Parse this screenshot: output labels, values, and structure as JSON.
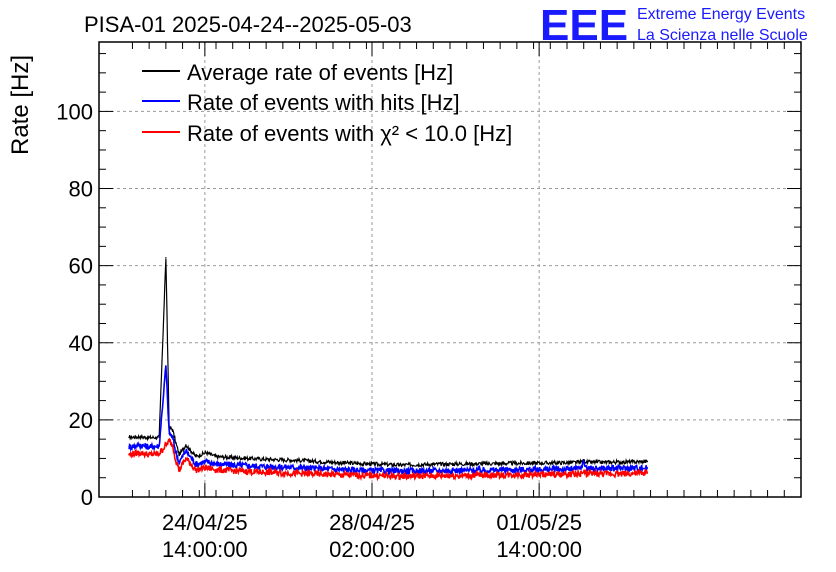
{
  "chart_data": {
    "type": "line",
    "title": "PISA-01 2025-04-24--2025-05-03",
    "ylabel": "Rate [Hz]",
    "xlabel": "",
    "ylim": [
      0,
      118
    ],
    "xlim_days": [
      0,
      10.5
    ],
    "y_ticks": [
      0,
      20,
      40,
      60,
      80,
      100
    ],
    "y_tick_labels": [
      "0",
      "20",
      "40",
      "60",
      "80",
      "100"
    ],
    "x_ticks_days": [
      1.58333,
      4.08333,
      6.58333
    ],
    "x_tick_labels": [
      {
        "date": "24/04/25",
        "time": "14:00:00"
      },
      {
        "date": "28/04/25",
        "time": "02:00:00"
      },
      {
        "date": "01/05/25",
        "time": "14:00:00"
      }
    ],
    "grid": true,
    "legend_position": "top-left",
    "logo": {
      "mark": "EEE",
      "line1": "Extreme Energy Events",
      "line2": "La Scienza nelle Scuole",
      "color": "#1a1aff"
    },
    "series": [
      {
        "name": "Average rate of events [Hz]",
        "color": "#000000",
        "x": [
          0.45,
          0.6,
          0.75,
          0.9,
          1.0,
          1.05,
          1.1,
          1.15,
          1.2,
          1.3,
          1.45,
          1.6,
          1.75,
          2.0,
          2.5,
          3.0,
          3.5,
          4.0,
          4.5,
          5.0,
          5.5,
          6.0,
          6.5,
          7.0,
          7.2,
          7.25,
          7.3,
          7.5,
          8.0,
          8.2
        ],
        "values": [
          15.5,
          15.6,
          15.4,
          15.5,
          62.0,
          18.0,
          17.5,
          14.0,
          11.0,
          13.5,
          10.5,
          11.5,
          10.5,
          10.2,
          9.8,
          9.5,
          9.0,
          8.6,
          8.3,
          8.5,
          8.6,
          8.7,
          8.8,
          8.9,
          9.0,
          9.5,
          9.0,
          9.0,
          9.1,
          9.2
        ],
        "marks": [
          0.5,
          2.0,
          4.0,
          6.0,
          8.0
        ]
      },
      {
        "name": "Rate of events with hits [Hz]",
        "color": "#0000ff",
        "x": [
          0.45,
          0.6,
          0.75,
          0.9,
          1.0,
          1.05,
          1.1,
          1.15,
          1.2,
          1.3,
          1.45,
          1.6,
          1.75,
          2.0,
          2.5,
          3.0,
          3.5,
          4.0,
          4.5,
          5.0,
          5.5,
          6.0,
          6.5,
          7.0,
          7.2,
          7.25,
          7.3,
          7.5,
          8.0,
          8.2
        ],
        "values": [
          13.0,
          13.5,
          13.0,
          13.2,
          34.0,
          16.5,
          15.5,
          11.5,
          9.0,
          12.0,
          8.5,
          9.2,
          8.6,
          8.3,
          7.9,
          7.6,
          7.2,
          6.9,
          6.7,
          6.8,
          6.9,
          7.0,
          7.1,
          7.2,
          7.4,
          9.0,
          7.4,
          7.4,
          7.5,
          7.6
        ],
        "marks": [
          0.5,
          2.0,
          4.0,
          6.0,
          8.0
        ]
      },
      {
        "name": "Rate of events with χ² < 10.0 [Hz]",
        "color": "#ff0000",
        "x": [
          0.45,
          0.6,
          0.75,
          0.9,
          1.0,
          1.05,
          1.1,
          1.15,
          1.2,
          1.3,
          1.45,
          1.6,
          1.75,
          2.0,
          2.5,
          3.0,
          3.5,
          4.0,
          4.5,
          5.0,
          5.5,
          6.0,
          6.5,
          7.0,
          7.2,
          7.25,
          7.3,
          7.5,
          8.0,
          8.2
        ],
        "values": [
          11.0,
          11.5,
          11.0,
          11.2,
          13.5,
          14.5,
          13.5,
          9.5,
          7.0,
          10.0,
          7.0,
          7.6,
          7.1,
          6.8,
          6.4,
          6.1,
          5.8,
          5.6,
          5.4,
          5.5,
          5.6,
          5.7,
          5.8,
          5.9,
          6.0,
          6.5,
          6.0,
          6.0,
          6.1,
          6.2
        ],
        "marks": [
          0.5,
          2.0,
          4.0,
          6.0,
          8.0
        ]
      }
    ]
  }
}
